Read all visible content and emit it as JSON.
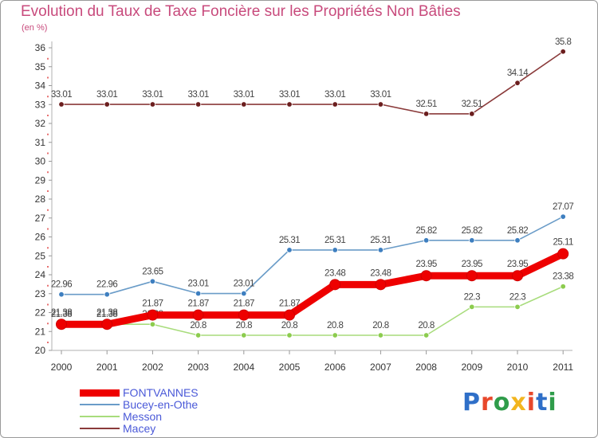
{
  "title": "Evolution du Taux de Taxe Foncière sur les Propriétés Non Bâties",
  "unit_label": "(en %)",
  "logo": {
    "text": "Proxiti",
    "colors": [
      "#2f6fc8",
      "#e8482b",
      "#2f9c4a",
      "#f2b51f",
      "#e8482b",
      "#2f6fc8",
      "#2f9c4a"
    ]
  },
  "chart_data": {
    "type": "line",
    "title": "Evolution du Taux de Taxe Foncière sur les Propriétés Non Bâties",
    "ylabel": "(en %)",
    "xlabel": "",
    "categories": [
      "2000",
      "2001",
      "2002",
      "2003",
      "2004",
      "2005",
      "2006",
      "2007",
      "2008",
      "2009",
      "2010",
      "2011"
    ],
    "ylim": [
      20,
      36
    ],
    "yticks": [
      20,
      21,
      22,
      23,
      24,
      25,
      26,
      27,
      28,
      29,
      30,
      31,
      32,
      33,
      34,
      35,
      36
    ],
    "series": [
      {
        "name": "Macey",
        "color": "#8a3a3a",
        "dot": "#6b1e1e",
        "values": [
          33.01,
          33.01,
          33.01,
          33.01,
          33.01,
          33.01,
          33.01,
          33.01,
          32.51,
          32.51,
          34.14,
          35.8
        ],
        "labels": [
          "33.01",
          "33.01",
          "33.01",
          "33.01",
          "33.01",
          "33.01",
          "33.01",
          "33.01",
          "32.51",
          "32.51",
          "34.14",
          "35.8"
        ]
      },
      {
        "name": "Bucey-en-Othe",
        "color": "#6a9cc8",
        "dot": "#3e7fc0",
        "values": [
          22.96,
          22.96,
          23.65,
          23.01,
          23.01,
          25.31,
          25.31,
          25.31,
          25.82,
          25.82,
          25.82,
          27.07
        ],
        "labels": [
          "22.96",
          "22.96",
          "23.65",
          "23.01",
          "23.01",
          "25.31",
          "25.31",
          "25.31",
          "25.82",
          "25.82",
          "25.82",
          "27.07"
        ]
      },
      {
        "name": "Messon",
        "color": "#a8dc7c",
        "dot": "#8ccc4e",
        "values": [
          21.38,
          21.38,
          21.38,
          20.8,
          20.8,
          20.8,
          20.8,
          20.8,
          20.8,
          22.3,
          22.3,
          23.38
        ],
        "labels": [
          "21.38",
          "21.38",
          "21.38",
          "20.8",
          "20.8",
          "20.8",
          "20.8",
          "20.8",
          "20.8",
          "22.3",
          "22.3",
          "23.38"
        ]
      },
      {
        "name": "FONTVANNES",
        "color": "#ee0000",
        "dot": "#ee0000",
        "values": [
          21.38,
          21.38,
          21.87,
          21.87,
          21.87,
          21.87,
          23.48,
          23.48,
          23.95,
          23.95,
          23.95,
          25.11
        ],
        "labels": [
          "21.38",
          "21.38",
          "21.87",
          "21.87",
          "21.87",
          "21.87",
          "23.48",
          "23.48",
          "23.95",
          "23.95",
          "23.95",
          "25.11"
        ]
      }
    ],
    "legend": {
      "placement": "bottom-left",
      "order": [
        "FONTVANNES",
        "Bucey-en-Othe",
        "Messon",
        "Macey"
      ]
    },
    "grid": false
  }
}
